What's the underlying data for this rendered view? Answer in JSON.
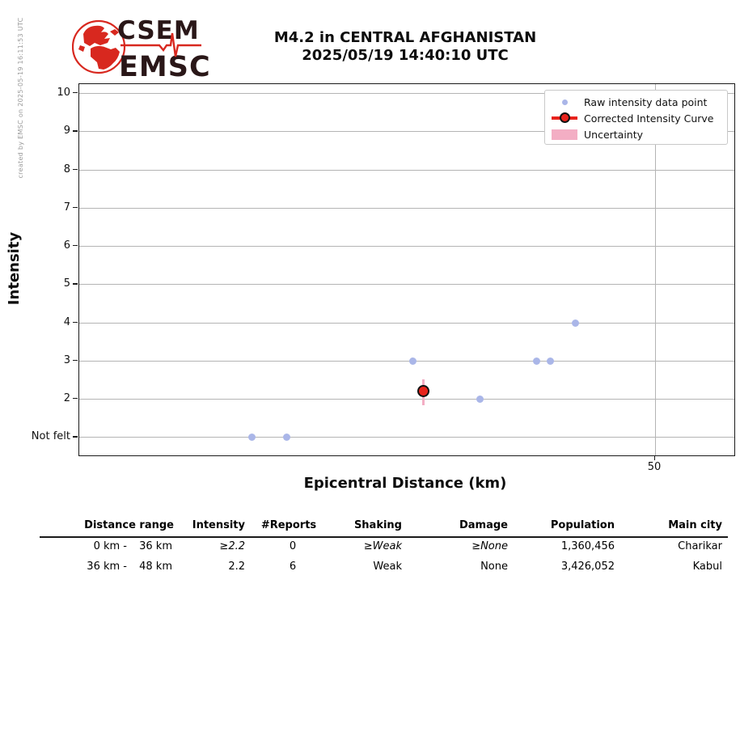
{
  "created_by": "created by EMSC on 2025-05-19 16:11:53 UTC",
  "logo": {
    "line1": "CSEM",
    "line2": "EMSC"
  },
  "header": {
    "title_line1": "M4.2 in CENTRAL AFGHANISTAN",
    "title_line2": "2025/05/19 14:40:10 UTC"
  },
  "colors": {
    "raw_point": "#aab6e8",
    "corrected_curve_red": "#e8231c",
    "uncertainty_pink": "#f3aec4",
    "gridline": "#b4b4b4",
    "logo_red": "#d8281f",
    "logo_text": "#2a1718",
    "side_note_gray": "#9b9b9b"
  },
  "chart_data": {
    "type": "scatter",
    "title": "M4.2 in CENTRAL AFGHANISTAN 2025/05/19 14:40:10 UTC",
    "xlabel": "Epicentral Distance (km)",
    "ylabel": "Intensity",
    "grid": true,
    "legend_position": "upper right",
    "legend": [
      "Raw intensity data point",
      "Corrected Intensity Curve",
      "Uncertainty"
    ],
    "xlim_km": [
      0,
      57
    ],
    "ylim": [
      0.5,
      10.25
    ],
    "x_ticks": [
      {
        "label": "50",
        "value": 50
      }
    ],
    "y_ticks": [
      {
        "label": "Not felt",
        "value": 1
      },
      {
        "label": "2",
        "value": 2
      },
      {
        "label": "3",
        "value": 3
      },
      {
        "label": "4",
        "value": 4
      },
      {
        "label": "5",
        "value": 5
      },
      {
        "label": "6",
        "value": 6
      },
      {
        "label": "7",
        "value": 7
      },
      {
        "label": "8",
        "value": 8
      },
      {
        "label": "9",
        "value": 9
      },
      {
        "label": "10",
        "value": 10
      }
    ],
    "intensity_note": "value 1 on intensity scale = Not felt",
    "series": [
      {
        "name": "Raw intensity data point",
        "type": "scatter",
        "points": [
          {
            "x_km": 15.0,
            "intensity": 1
          },
          {
            "x_km": 18.0,
            "intensity": 1
          },
          {
            "x_km": 29.0,
            "intensity": 3
          },
          {
            "x_km": 34.8,
            "intensity": 2
          },
          {
            "x_km": 39.7,
            "intensity": 3
          },
          {
            "x_km": 40.9,
            "intensity": 3
          },
          {
            "x_km": 43.1,
            "intensity": 4
          }
        ]
      },
      {
        "name": "Corrected Intensity Curve",
        "type": "line_marker",
        "points": [
          {
            "x_km": 29.9,
            "intensity": 2.2,
            "uncertainty_low": 1.83,
            "uncertainty_high": 2.5
          }
        ]
      }
    ]
  },
  "table": {
    "columns": [
      "Distance range",
      "Intensity",
      "#Reports",
      "Shaking",
      "Damage",
      "Population",
      "Main city"
    ],
    "rows": [
      {
        "distance_from": "0 km -",
        "distance_to": "36 km",
        "intensity": "≥2.2",
        "reports": "0",
        "shaking": "≥Weak",
        "damage": "≥None",
        "population": "1,360,456",
        "main_city": "Charikar"
      },
      {
        "distance_from": "36 km -",
        "distance_to": "48 km",
        "intensity": "2.2",
        "reports": "6",
        "shaking": "Weak",
        "damage": "None",
        "population": "3,426,052",
        "main_city": "Kabul"
      }
    ]
  }
}
